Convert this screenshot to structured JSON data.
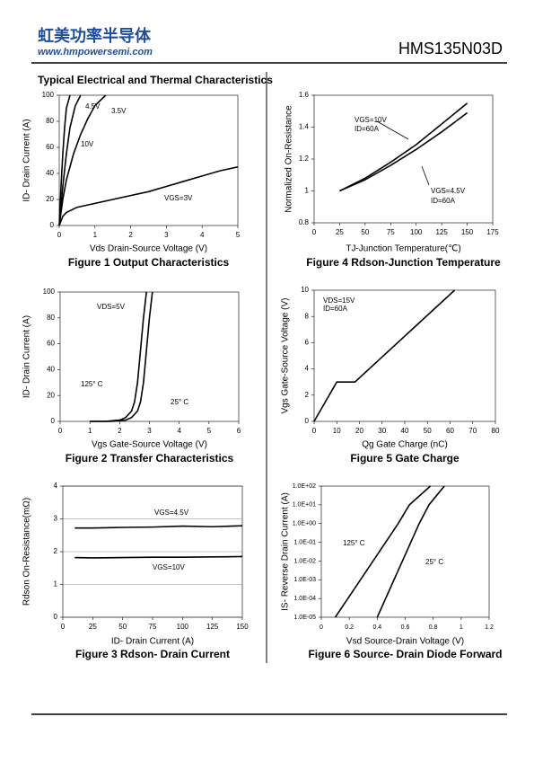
{
  "header": {
    "brand": "虹美功率半导体",
    "website": "www.hmpowersemi.com",
    "part": "HMS135N03D"
  },
  "section_title": "Typical Electrical and Thermal Characteristics",
  "chart_data": [
    {
      "type": "line",
      "title": "Figure 1 Output Characteristics",
      "xlabel": "Vds Drain-Source Voltage (V)",
      "ylabel": "ID- Drain Current (A)",
      "xlim": [
        0,
        5
      ],
      "ylim": [
        0,
        100
      ],
      "xticks": [
        0,
        1,
        2,
        3,
        4,
        5
      ],
      "yticks": [
        0,
        20,
        40,
        60,
        80,
        100
      ],
      "grid": false,
      "series": [
        {
          "name": "10V",
          "color": "#000000",
          "x": [
            0,
            0.05,
            0.1,
            0.15,
            0.2,
            0.3
          ],
          "values": [
            0,
            30,
            55,
            75,
            90,
            100
          ]
        },
        {
          "name": "4.5V",
          "color": "#000000",
          "x": [
            0,
            0.1,
            0.2,
            0.3,
            0.45,
            0.6
          ],
          "values": [
            0,
            30,
            55,
            75,
            92,
            100
          ]
        },
        {
          "name": "3.5V",
          "color": "#000000",
          "x": [
            0,
            0.1,
            0.2,
            0.4,
            0.6,
            0.8,
            1,
            1.3
          ],
          "values": [
            0,
            20,
            35,
            55,
            70,
            82,
            92,
            100
          ]
        },
        {
          "name": "VGS=3V",
          "color": "#000000",
          "x": [
            0,
            0.1,
            0.2,
            0.5,
            1,
            1.5,
            2,
            2.5,
            3,
            3.5,
            4,
            4.5,
            5
          ],
          "values": [
            0,
            7,
            10,
            14,
            17,
            20,
            23,
            26,
            30,
            34,
            38,
            42,
            45
          ]
        }
      ]
    },
    {
      "type": "line",
      "title": "Figure 2 Transfer Characteristics",
      "xlabel": "Vgs Gate-Source Voltage (V)",
      "ylabel": "ID- Drain Current (A)",
      "xlim": [
        0,
        6
      ],
      "ylim": [
        0,
        100
      ],
      "xticks": [
        0,
        1,
        2,
        3,
        4,
        5,
        6
      ],
      "yticks": [
        0,
        20,
        40,
        60,
        80,
        100
      ],
      "grid": false,
      "annotations": [
        "VDS=5V"
      ],
      "series": [
        {
          "name": "125° C",
          "color": "#000000",
          "x": [
            1,
            1.5,
            2,
            2.2,
            2.4,
            2.5,
            2.6,
            2.7,
            2.8,
            2.9
          ],
          "values": [
            0,
            0,
            1,
            3,
            8,
            15,
            30,
            55,
            80,
            100
          ]
        },
        {
          "name": "25° C",
          "color": "#000000",
          "x": [
            1,
            1.7,
            2.2,
            2.4,
            2.6,
            2.7,
            2.8,
            2.9,
            3,
            3.1
          ],
          "values": [
            0,
            0,
            1,
            3,
            8,
            15,
            30,
            55,
            80,
            100
          ]
        }
      ]
    },
    {
      "type": "line",
      "title": "Figure 3 Rdson- Drain Current",
      "xlabel": "ID- Drain Current (A)",
      "ylabel": "Rdson On-Resistance(mΩ)",
      "xlim": [
        0,
        150
      ],
      "ylim": [
        0,
        4
      ],
      "xticks": [
        0,
        25,
        50,
        75,
        100,
        125,
        150
      ],
      "yticks": [
        0,
        1,
        2,
        3,
        4
      ],
      "grid": true,
      "series": [
        {
          "name": "VGS=4.5V",
          "color": "#000000",
          "x": [
            10,
            25,
            50,
            75,
            100,
            125,
            150
          ],
          "values": [
            2.72,
            2.72,
            2.74,
            2.75,
            2.78,
            2.76,
            2.79
          ]
        },
        {
          "name": "VGS=10V",
          "color": "#000000",
          "x": [
            10,
            25,
            50,
            75,
            100,
            125,
            150
          ],
          "values": [
            1.82,
            1.81,
            1.82,
            1.83,
            1.83,
            1.84,
            1.85
          ]
        }
      ]
    },
    {
      "type": "line",
      "title": "Figure 4 Rdson-Junction Temperature",
      "xlabel": "TJ-Junction Temperature(℃)",
      "ylabel": "Normalized On-Resistance",
      "xlim": [
        0,
        175
      ],
      "ylim": [
        0.8,
        1.6
      ],
      "xticks": [
        0,
        25,
        50,
        75,
        100,
        125,
        150,
        175
      ],
      "yticks": [
        0.8,
        1,
        1.2,
        1.4,
        1.6
      ],
      "grid": false,
      "annotations": [
        "ID=60A",
        "ID=60A"
      ],
      "series": [
        {
          "name": "VGS=10V",
          "color": "#000000",
          "x": [
            25,
            50,
            75,
            100,
            125,
            150
          ],
          "values": [
            1,
            1.08,
            1.18,
            1.29,
            1.42,
            1.55
          ]
        },
        {
          "name": "VGS=4.5V",
          "color": "#000000",
          "x": [
            25,
            50,
            75,
            100,
            125,
            150
          ],
          "values": [
            1,
            1.07,
            1.16,
            1.26,
            1.37,
            1.49
          ]
        }
      ]
    },
    {
      "type": "line",
      "title": "Figure 5 Gate Charge",
      "xlabel": "Qg Gate Charge (nC)",
      "ylabel": "Vgs Gate-Source Voltage (V)",
      "xlim": [
        0,
        80
      ],
      "ylim": [
        0,
        10
      ],
      "xticks": [
        0,
        10,
        20,
        30,
        40,
        50,
        60,
        70,
        80
      ],
      "yticks": [
        0,
        2,
        4,
        6,
        8,
        10
      ],
      "grid": false,
      "annotations": [
        "VDS=15V",
        "ID=60A"
      ],
      "series": [
        {
          "color": "#000000",
          "x": [
            0,
            10,
            18,
            62
          ],
          "values": [
            0,
            3,
            3,
            10
          ]
        }
      ]
    },
    {
      "type": "line",
      "title": "Figure 6 Source- Drain Diode Forward",
      "xlabel": "Vsd Source-Drain Voltage (V)",
      "ylabel": "IS- Reverse Drain Current (A)",
      "xlim": [
        0,
        1.2
      ],
      "ylim": [
        1e-05,
        100
      ],
      "log_y": true,
      "xticks": [
        0,
        0.2,
        0.4,
        0.6,
        0.8,
        1,
        1.2
      ],
      "yticks": [
        {
          "value": 1e-05,
          "label": "1.0E-05"
        },
        {
          "value": 0.0001,
          "label": "1.0E-04"
        },
        {
          "value": 0.001,
          "label": "1.0E-03"
        },
        {
          "value": 0.01,
          "label": "1.0E-02"
        },
        {
          "value": 0.1,
          "label": "1.0E-01"
        },
        {
          "value": 1,
          "label": "1.0E+00"
        },
        {
          "value": 10,
          "label": "1.0E+01"
        },
        {
          "value": 100,
          "label": "1.0E+02"
        }
      ],
      "grid": false,
      "series": [
        {
          "name": "125° C",
          "color": "#000000",
          "x": [
            0.1,
            0.19,
            0.28,
            0.37,
            0.46,
            0.55,
            0.63,
            0.78
          ],
          "values": [
            1e-05,
            0.0001,
            0.001,
            0.01,
            0.1,
            1,
            10,
            100
          ]
        },
        {
          "name": "25° C",
          "color": "#000000",
          "x": [
            0.4,
            0.46,
            0.52,
            0.58,
            0.64,
            0.7,
            0.77,
            0.88
          ],
          "values": [
            1e-05,
            0.0001,
            0.001,
            0.01,
            0.1,
            1,
            10,
            100
          ]
        }
      ]
    }
  ]
}
